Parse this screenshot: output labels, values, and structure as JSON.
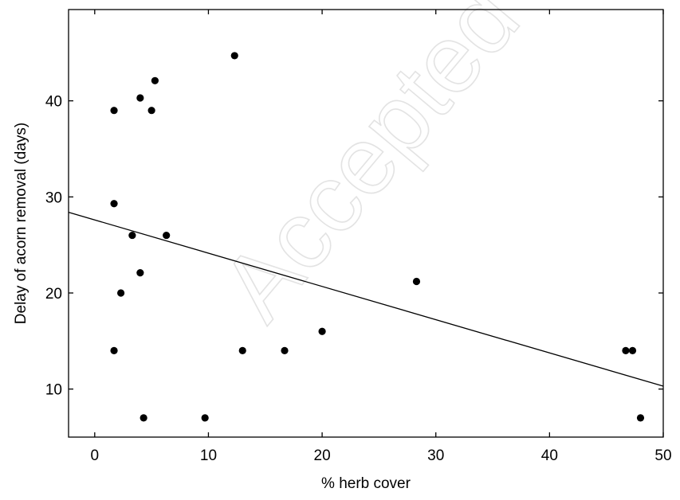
{
  "watermark": "Accepted m",
  "chart_data": {
    "type": "scatter",
    "xlabel": "% herb cover",
    "ylabel": "Delay of acorn removal (days)",
    "xlim": [
      -2.3,
      50
    ],
    "ylim": [
      5,
      49.5
    ],
    "xticks": [
      0,
      10,
      20,
      30,
      40,
      50
    ],
    "yticks": [
      10,
      20,
      30,
      40
    ],
    "grid": false,
    "points": [
      {
        "x": 1.7,
        "y": 39
      },
      {
        "x": 1.7,
        "y": 29.3
      },
      {
        "x": 1.7,
        "y": 14
      },
      {
        "x": 2.3,
        "y": 20
      },
      {
        "x": 3.3,
        "y": 26
      },
      {
        "x": 4.0,
        "y": 40.3
      },
      {
        "x": 4.0,
        "y": 22.1
      },
      {
        "x": 4.3,
        "y": 7
      },
      {
        "x": 5.0,
        "y": 39
      },
      {
        "x": 5.3,
        "y": 42.1
      },
      {
        "x": 6.3,
        "y": 26
      },
      {
        "x": 9.7,
        "y": 7
      },
      {
        "x": 12.3,
        "y": 44.7
      },
      {
        "x": 13.0,
        "y": 14
      },
      {
        "x": 16.7,
        "y": 14
      },
      {
        "x": 20.0,
        "y": 16
      },
      {
        "x": 28.3,
        "y": 21.2
      },
      {
        "x": 46.7,
        "y": 14
      },
      {
        "x": 47.3,
        "y": 14
      },
      {
        "x": 48.0,
        "y": 7
      }
    ],
    "trendline": {
      "x": [
        -2.3,
        50
      ],
      "y": [
        28.4,
        10.3
      ]
    }
  }
}
